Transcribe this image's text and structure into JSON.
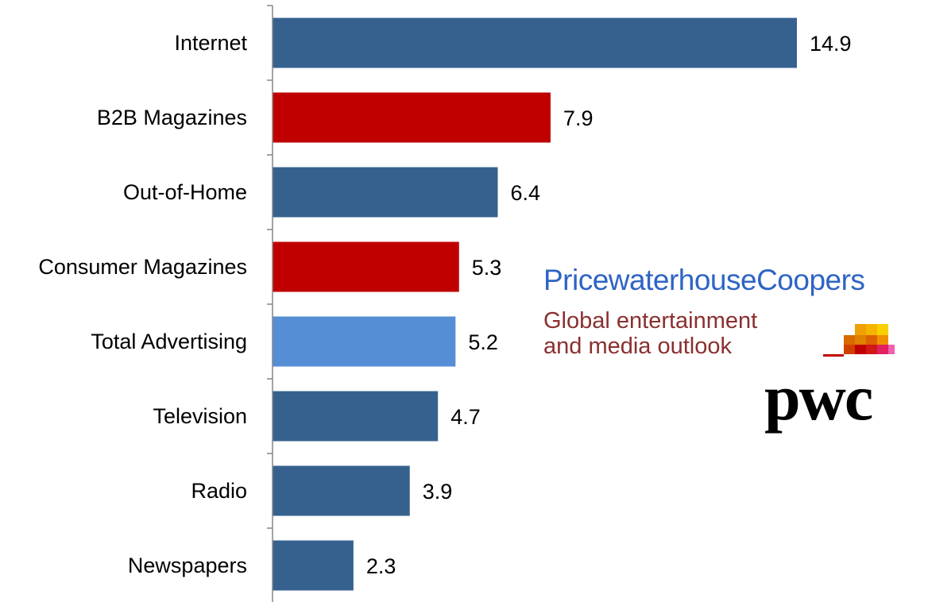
{
  "chart_data": {
    "type": "bar",
    "orientation": "horizontal",
    "categories": [
      "Internet",
      "B2B Magazines",
      "Out-of-Home",
      "Consumer Magazines",
      "Total Advertising",
      "Television",
      "Radio",
      "Newspapers"
    ],
    "values": [
      14.9,
      7.9,
      6.4,
      5.3,
      5.2,
      4.7,
      3.9,
      2.3
    ],
    "value_labels": [
      "14.9",
      "7.9",
      "6.4",
      "5.3",
      "5.2",
      "4.7",
      "3.9",
      "2.3"
    ],
    "bar_colors": [
      "#36618f",
      "#c00000",
      "#36618f",
      "#c00000",
      "#558ed5",
      "#36618f",
      "#36618f",
      "#36618f"
    ],
    "title": "",
    "xlabel": "",
    "ylabel": "",
    "xlim": [
      0,
      18
    ],
    "grid": false,
    "legend": "none"
  },
  "logo": {
    "brand": "PricewaterhouseCoopers",
    "tagline_line1": "Global entertainment",
    "tagline_line2": "and media outlook",
    "mark": "pwc"
  },
  "colors": {
    "brand_blue": "#2e64c4",
    "tagline_red": "#8b2f2f"
  }
}
